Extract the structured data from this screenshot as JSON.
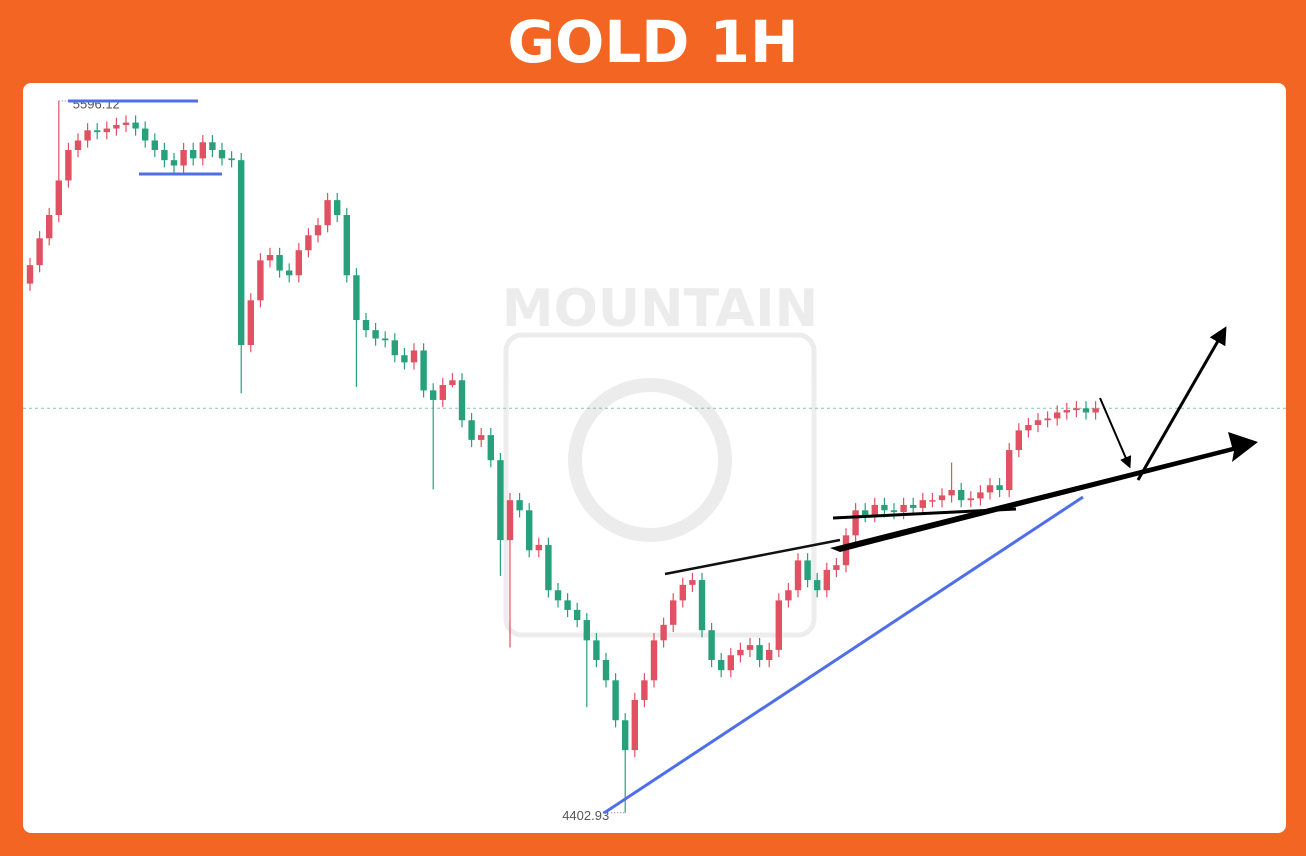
{
  "chart_data": {
    "type": "candlestick",
    "title": "GOLD 1H",
    "watermark": "MOUNTAIN",
    "up_color": "#e05263",
    "down_color": "#26a17b",
    "ylim": [
      4369,
      5623
    ],
    "open": [
      5290,
      5321,
      5366,
      5405,
      5463,
      5514,
      5530,
      5547,
      5544,
      5550,
      5556,
      5560,
      5550,
      5530,
      5514,
      5497,
      5488,
      5514,
      5500,
      5527,
      5514,
      5500,
      5497,
      5187,
      5262,
      5329,
      5338,
      5312,
      5304,
      5346,
      5371,
      5388,
      5430,
      5405,
      5304,
      5229,
      5212,
      5198,
      5195,
      5170,
      5158,
      5178,
      5111,
      5095,
      5120,
      5128,
      5061,
      5028,
      5036,
      4994,
      4860,
      4927,
      4910,
      4843,
      4852,
      4776,
      4759,
      4743,
      4726,
      4692,
      4659,
      4625,
      4558,
      4508,
      4592,
      4625,
      4692,
      4718,
      4759,
      4785,
      4793,
      4709,
      4659,
      4642,
      4667,
      4676,
      4684,
      4659,
      4676,
      4759,
      4776,
      4826,
      4793,
      4776,
      4810,
      4818,
      4868,
      4910,
      4902,
      4919,
      4910,
      4907,
      4919,
      4914,
      4927,
      4927,
      4935,
      4944,
      4927,
      4930,
      4940,
      4952,
      4944,
      5011,
      5044,
      5053,
      5061,
      5064,
      5074,
      5078,
      5081,
      5074
    ],
    "high": [
      5333,
      5378,
      5417,
      5596.12,
      5526,
      5542,
      5559,
      5559,
      5562,
      5568,
      5572,
      5572,
      5562,
      5542,
      5526,
      5509,
      5526,
      5526,
      5539,
      5539,
      5526,
      5512,
      5509,
      5274,
      5341,
      5350,
      5350,
      5324,
      5358,
      5383,
      5400,
      5442,
      5442,
      5417,
      5316,
      5241,
      5224,
      5210,
      5207,
      5182,
      5190,
      5190,
      5123,
      5132,
      5140,
      5140,
      5073,
      5048,
      5048,
      5006,
      4939,
      4939,
      4922,
      4864,
      4864,
      4788,
      4771,
      4755,
      4738,
      4704,
      4671,
      4637,
      4570,
      4604,
      4637,
      4704,
      4730,
      4771,
      4797,
      4805,
      4805,
      4721,
      4671,
      4679,
      4688,
      4696,
      4696,
      4688,
      4771,
      4788,
      4838,
      4838,
      4805,
      4822,
      4830,
      4880,
      4922,
      4922,
      4931,
      4931,
      4922,
      4931,
      4931,
      4939,
      4939,
      4947,
      4990,
      4956,
      4942,
      4952,
      4964,
      4964,
      5023,
      5056,
      5065,
      5073,
      5076,
      5086,
      5090,
      5093,
      5093,
      5093
    ],
    "low": [
      5278,
      5309,
      5354,
      5393,
      5451,
      5502,
      5518,
      5532,
      5532,
      5538,
      5544,
      5538,
      5518,
      5502,
      5485,
      5476,
      5476,
      5488,
      5488,
      5502,
      5488,
      5485,
      5106,
      5175,
      5250,
      5317,
      5300,
      5292,
      5292,
      5334,
      5359,
      5376,
      5393,
      5292,
      5117,
      5200,
      5186,
      5183,
      5158,
      5146,
      5146,
      5099,
      4945,
      5083,
      5116,
      5049,
      5016,
      5016,
      4982,
      4800,
      4680,
      4898,
      4831,
      4831,
      4764,
      4747,
      4731,
      4714,
      4580,
      4647,
      4613,
      4546,
      4402.93,
      4496,
      4580,
      4613,
      4680,
      4706,
      4747,
      4773,
      4697,
      4647,
      4630,
      4630,
      4655,
      4664,
      4647,
      4647,
      4664,
      4747,
      4764,
      4781,
      4764,
      4764,
      4798,
      4806,
      4856,
      4890,
      4890,
      4898,
      4895,
      4895,
      4902,
      4902,
      4915,
      4915,
      4923,
      4915,
      4915,
      4918,
      4928,
      4932,
      4932,
      4999,
      5032,
      5041,
      5049,
      5052,
      5062,
      5066,
      5062,
      5062
    ],
    "close": [
      5321,
      5366,
      5405,
      5463,
      5514,
      5530,
      5547,
      5544,
      5550,
      5556,
      5560,
      5550,
      5530,
      5514,
      5497,
      5488,
      5514,
      5500,
      5527,
      5514,
      5500,
      5497,
      5187,
      5262,
      5329,
      5338,
      5312,
      5304,
      5346,
      5371,
      5388,
      5430,
      5405,
      5304,
      5229,
      5212,
      5198,
      5195,
      5170,
      5158,
      5178,
      5111,
      5095,
      5120,
      5128,
      5061,
      5028,
      5036,
      4994,
      4860,
      4927,
      4910,
      4843,
      4852,
      4776,
      4759,
      4743,
      4726,
      4692,
      4659,
      4625,
      4558,
      4508,
      4592,
      4625,
      4692,
      4718,
      4759,
      4785,
      4793,
      4709,
      4659,
      4642,
      4667,
      4676,
      4684,
      4659,
      4676,
      4759,
      4776,
      4826,
      4793,
      4776,
      4810,
      4818,
      4868,
      4910,
      4902,
      4919,
      4910,
      4907,
      4919,
      4914,
      4927,
      4927,
      4935,
      4944,
      4927,
      4930,
      4940,
      4952,
      4944,
      5011,
      5044,
      5053,
      5061,
      5064,
      5074,
      5078,
      5081,
      5074,
      5081
    ]
  }
}
